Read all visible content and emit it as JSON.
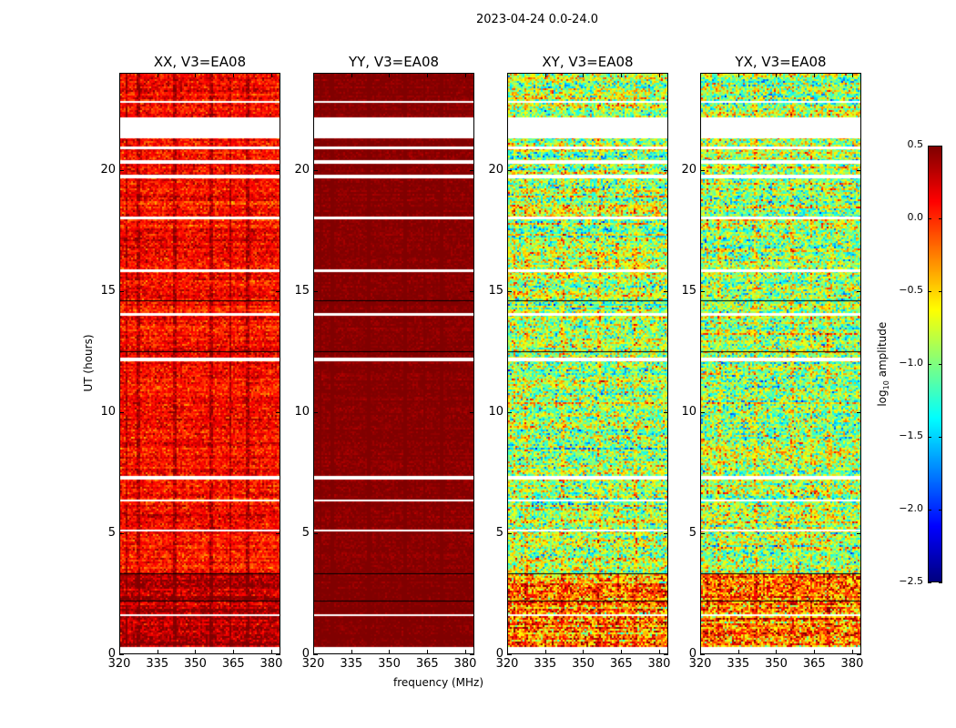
{
  "suptitle": "2023-04-24 0.0-24.0",
  "chart_data": {
    "type": "heatmap",
    "title": "2023-04-24 0.0-24.0",
    "xlabel": "frequency (MHz)",
    "ylabel": "UT (hours)",
    "xlim": [
      320,
      383.6
    ],
    "ylim": [
      0,
      24
    ],
    "xticks": [
      "320",
      "335",
      "350",
      "365",
      "380"
    ],
    "yticks": [
      "0",
      "5",
      "10",
      "15",
      "20"
    ],
    "colormap": "jet",
    "colorbar": {
      "label": "log10 amplitude",
      "label_main": "log",
      "label_sub": "10",
      "label_rest": " amplitude",
      "range": [
        -2.5,
        0.5
      ],
      "ticks": [
        "0.5",
        "0.0",
        "−0.5",
        "−1.0",
        "−1.5",
        "−2.0",
        "−2.5"
      ]
    },
    "flagged_ut_ranges": [
      [
        21.35,
        22.2
      ],
      [
        0.0,
        0.3
      ],
      [
        20.3,
        20.45
      ],
      [
        19.7,
        19.85
      ],
      [
        12.1,
        12.25
      ],
      [
        7.2,
        7.35
      ],
      [
        5.05,
        5.15
      ],
      [
        6.3,
        6.4
      ],
      [
        1.55,
        1.65
      ],
      [
        15.8,
        15.9
      ],
      [
        18.0,
        18.1
      ],
      [
        14.0,
        14.1
      ],
      [
        20.9,
        21.0
      ],
      [
        22.8,
        22.9
      ]
    ],
    "panels": [
      {
        "title": "XX, V3=EA08",
        "mean": 0.1,
        "spread": 0.25,
        "low_ut_mean": 0.35
      },
      {
        "title": "YY, V3=EA08",
        "mean": 0.48,
        "spread": 0.08,
        "low_ut_mean": 0.5
      },
      {
        "title": "XY, V3=EA08",
        "mean": -0.9,
        "spread": 0.6,
        "low_ut_mean": -0.2
      },
      {
        "title": "YX, V3=EA08",
        "mean": -0.9,
        "spread": 0.6,
        "low_ut_mean": -0.2
      }
    ]
  }
}
